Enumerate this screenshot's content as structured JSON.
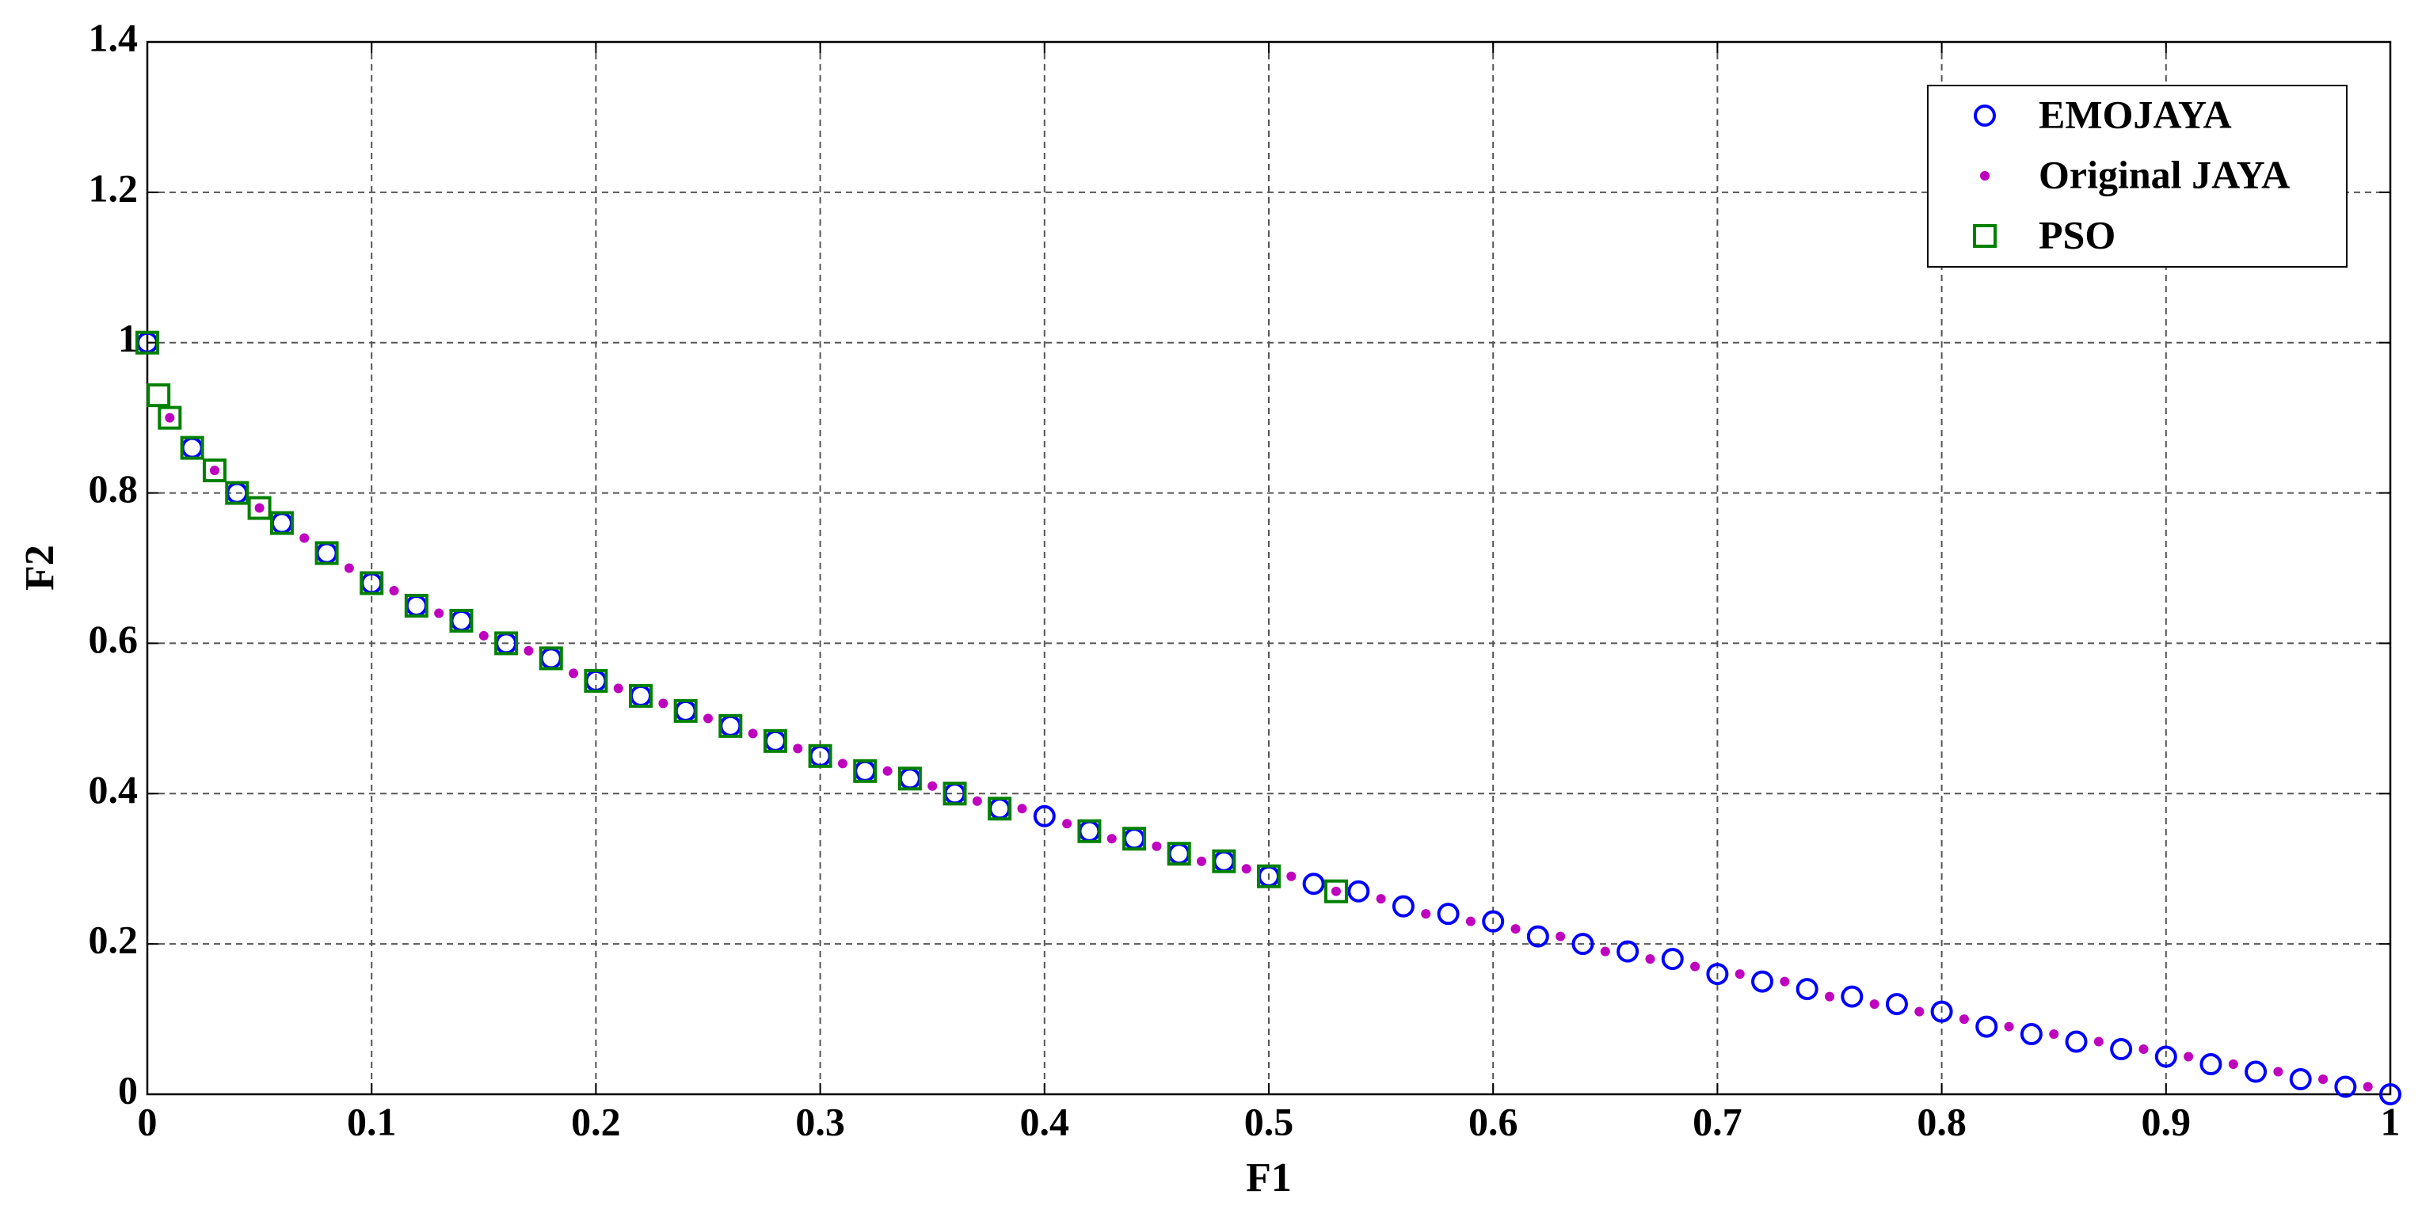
{
  "chart_data": {
    "type": "scatter",
    "xlabel": "F1",
    "ylabel": "F2",
    "xlim": [
      0,
      1
    ],
    "ylim": [
      0,
      1.4
    ],
    "xticks": [
      0,
      0.1,
      0.2,
      0.3,
      0.4,
      0.5,
      0.6,
      0.7,
      0.8,
      0.9,
      1
    ],
    "yticks": [
      0,
      0.2,
      0.4,
      0.6,
      0.8,
      1,
      1.2,
      1.4
    ],
    "grid": true,
    "legend": "northeast",
    "series": [
      {
        "name": "EMOJAYA",
        "color": "#0000ff",
        "marker": "circle",
        "x": [
          0,
          0.02,
          0.04,
          0.06,
          0.08,
          0.1,
          0.12,
          0.14,
          0.16,
          0.18,
          0.2,
          0.22,
          0.24,
          0.26,
          0.28,
          0.3,
          0.32,
          0.34,
          0.36,
          0.38,
          0.4,
          0.42,
          0.44,
          0.46,
          0.48,
          0.5,
          0.52,
          0.54,
          0.56,
          0.58,
          0.6,
          0.62,
          0.64,
          0.66,
          0.68,
          0.7,
          0.72,
          0.74,
          0.76,
          0.78,
          0.8,
          0.82,
          0.84,
          0.86,
          0.88,
          0.9,
          0.92,
          0.94,
          0.96,
          0.98,
          1
        ],
        "values": [
          1,
          0.86,
          0.8,
          0.76,
          0.72,
          0.68,
          0.65,
          0.63,
          0.6,
          0.58,
          0.55,
          0.53,
          0.51,
          0.49,
          0.47,
          0.45,
          0.43,
          0.42,
          0.4,
          0.38,
          0.37,
          0.35,
          0.34,
          0.32,
          0.31,
          0.29,
          0.28,
          0.27,
          0.25,
          0.24,
          0.23,
          0.21,
          0.2,
          0.19,
          0.18,
          0.16,
          0.15,
          0.14,
          0.13,
          0.12,
          0.11,
          0.09,
          0.08,
          0.07,
          0.06,
          0.05,
          0.04,
          0.03,
          0.02,
          0.01,
          0
        ]
      },
      {
        "name": "Original JAYA",
        "color": "#bf00bf",
        "marker": "dot",
        "x": [
          0.01,
          0.03,
          0.05,
          0.07,
          0.09,
          0.11,
          0.13,
          0.15,
          0.17,
          0.19,
          0.21,
          0.23,
          0.25,
          0.27,
          0.29,
          0.31,
          0.33,
          0.35,
          0.37,
          0.39,
          0.41,
          0.43,
          0.45,
          0.47,
          0.49,
          0.51,
          0.53,
          0.55,
          0.57,
          0.59,
          0.61,
          0.63,
          0.65,
          0.67,
          0.69,
          0.71,
          0.73,
          0.75,
          0.77,
          0.79,
          0.81,
          0.83,
          0.85,
          0.87,
          0.89,
          0.91,
          0.93,
          0.95,
          0.97,
          0.99
        ],
        "values": [
          0.9,
          0.83,
          0.78,
          0.74,
          0.7,
          0.67,
          0.64,
          0.61,
          0.59,
          0.56,
          0.54,
          0.52,
          0.5,
          0.48,
          0.46,
          0.44,
          0.43,
          0.41,
          0.39,
          0.38,
          0.36,
          0.34,
          0.33,
          0.31,
          0.3,
          0.29,
          0.27,
          0.26,
          0.24,
          0.23,
          0.22,
          0.21,
          0.19,
          0.18,
          0.17,
          0.16,
          0.15,
          0.13,
          0.12,
          0.11,
          0.1,
          0.09,
          0.08,
          0.07,
          0.06,
          0.05,
          0.04,
          0.03,
          0.02,
          0.01
        ]
      },
      {
        "name": "PSO",
        "color": "#008000",
        "marker": "square",
        "x": [
          0,
          0.005,
          0.01,
          0.02,
          0.03,
          0.04,
          0.05,
          0.06,
          0.08,
          0.1,
          0.12,
          0.14,
          0.16,
          0.18,
          0.2,
          0.22,
          0.24,
          0.26,
          0.28,
          0.3,
          0.32,
          0.34,
          0.36,
          0.38,
          0.42,
          0.44,
          0.46,
          0.48,
          0.5,
          0.53
        ],
        "values": [
          1,
          0.93,
          0.9,
          0.86,
          0.83,
          0.8,
          0.78,
          0.76,
          0.72,
          0.68,
          0.65,
          0.63,
          0.6,
          0.58,
          0.55,
          0.53,
          0.51,
          0.49,
          0.47,
          0.45,
          0.43,
          0.42,
          0.4,
          0.38,
          0.35,
          0.34,
          0.32,
          0.31,
          0.29,
          0.27
        ]
      }
    ]
  }
}
